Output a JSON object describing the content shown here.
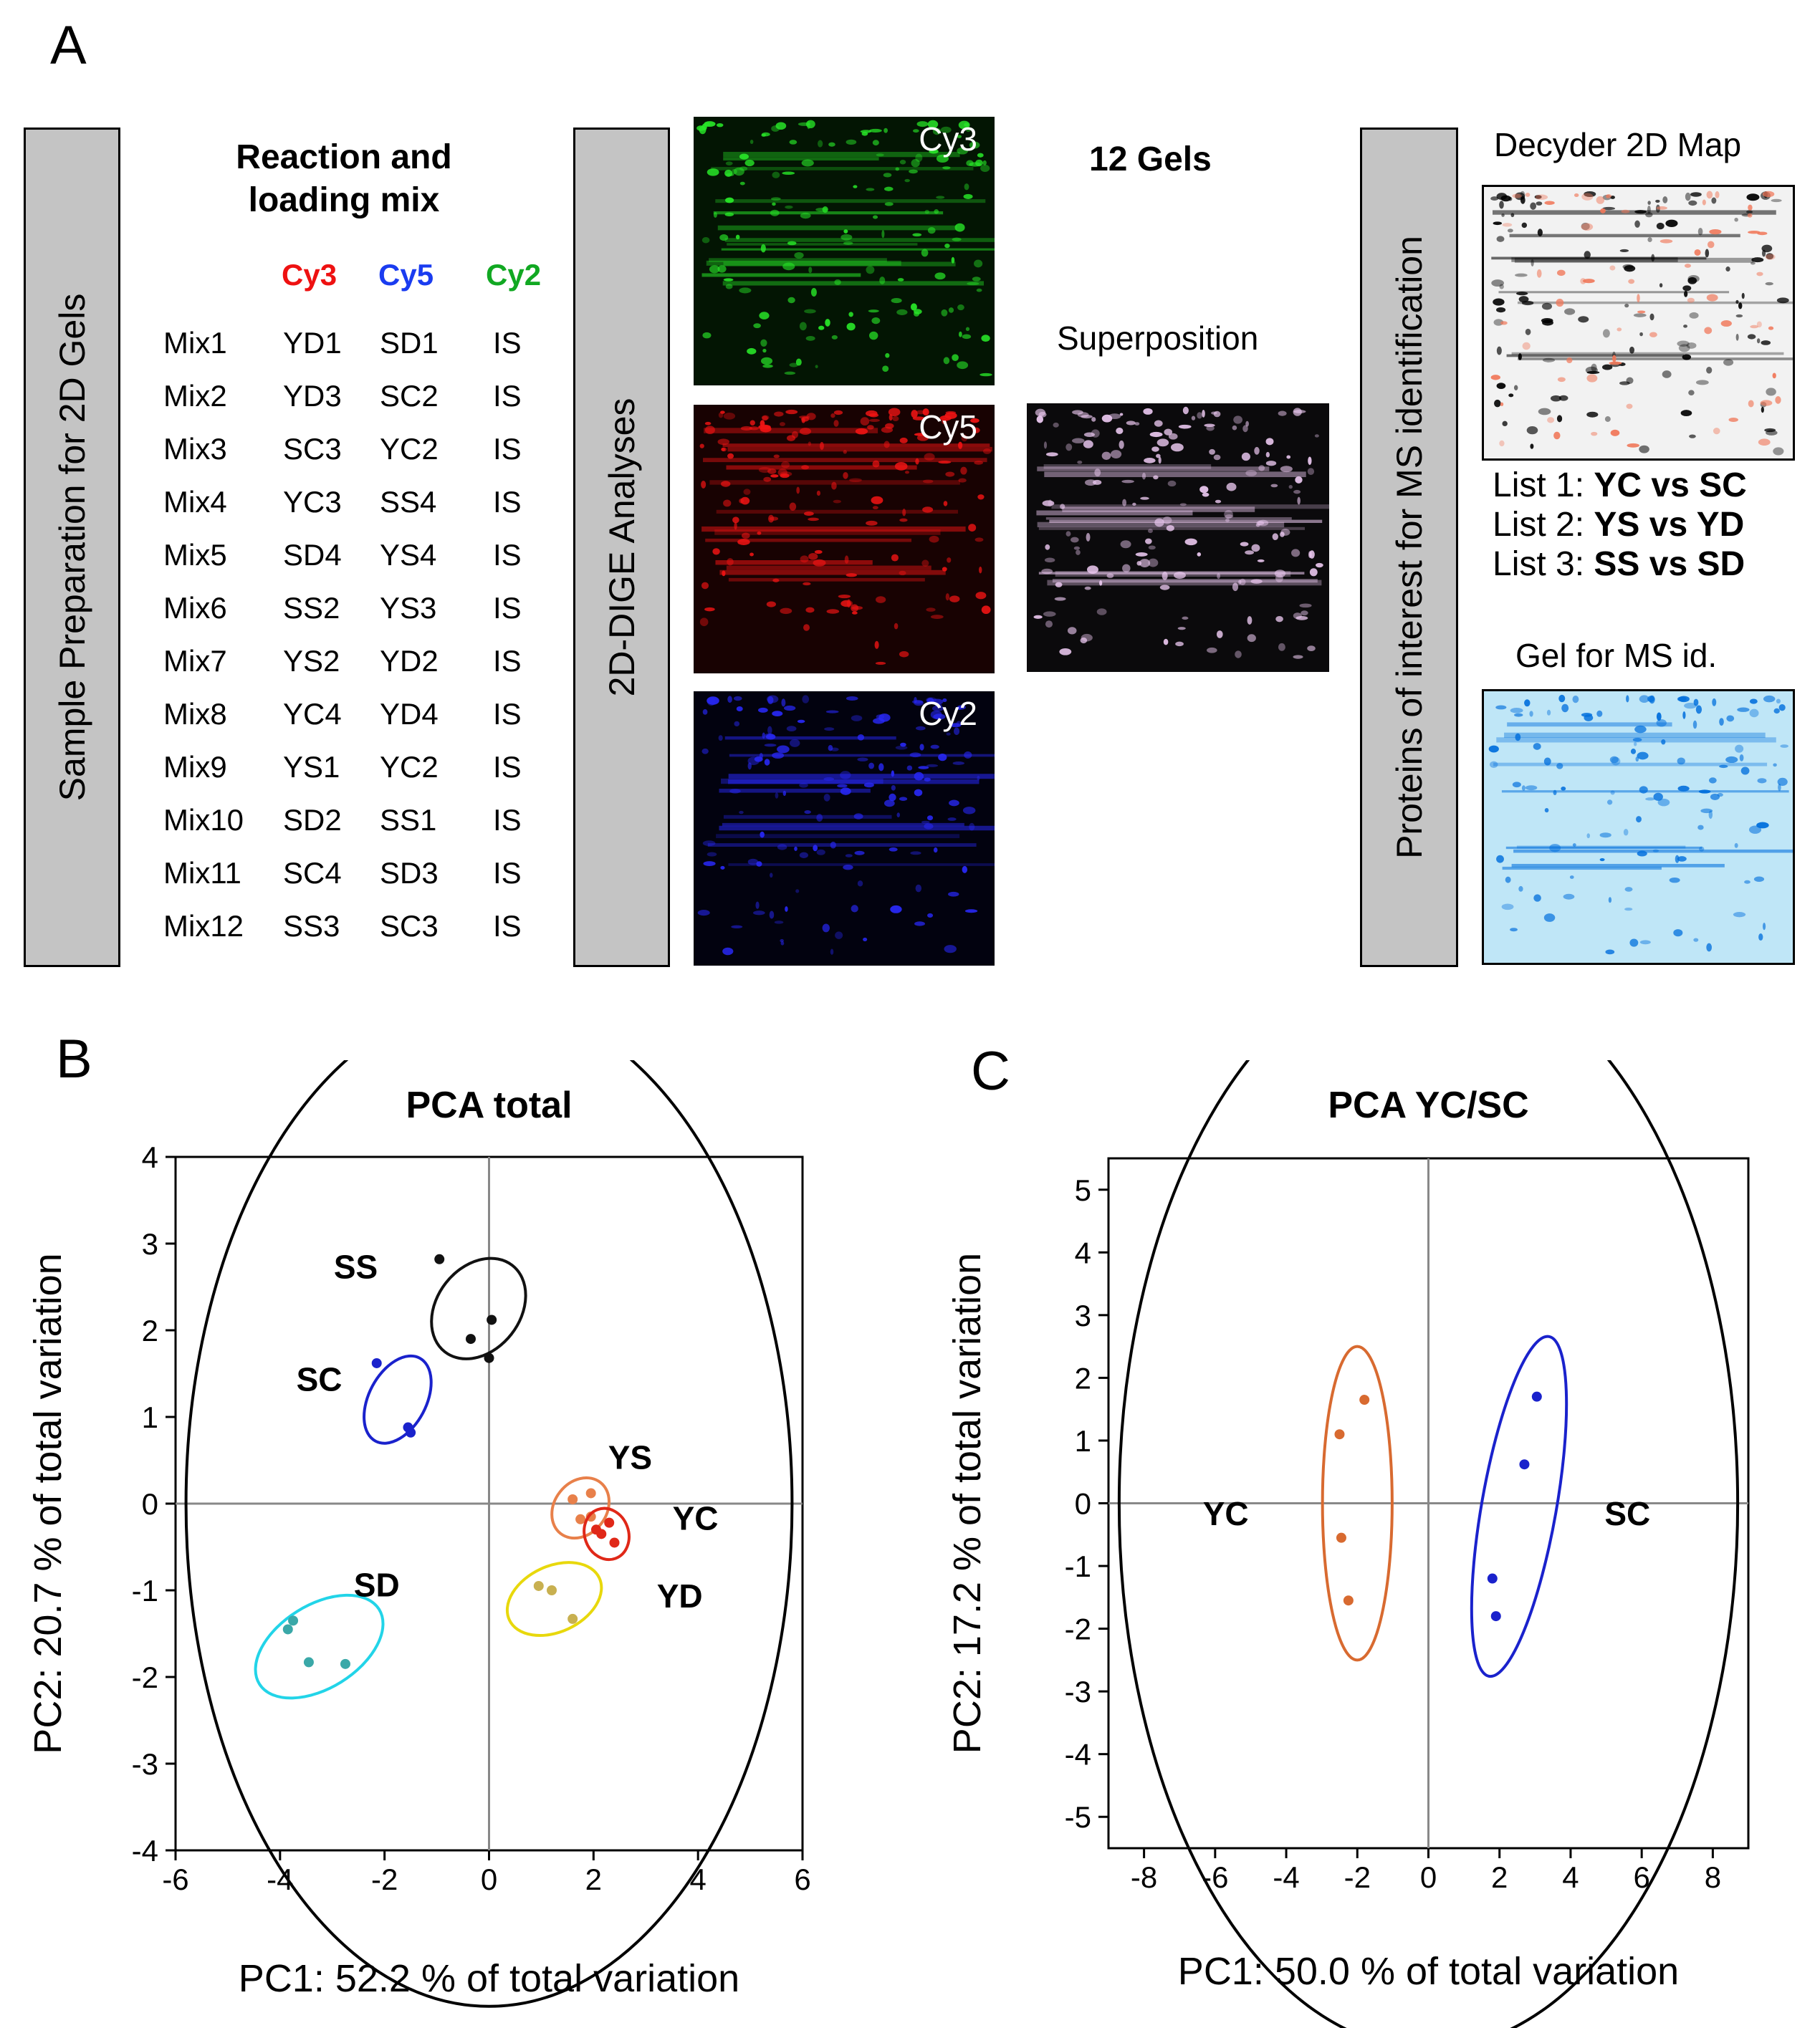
{
  "panel_a": {
    "letter": "A",
    "box1_label": "Sample Preparation for 2D Gels",
    "mix_heading_line1": "Reaction and",
    "mix_heading_line2": "loading mix",
    "dyes": [
      {
        "name": "Cy3",
        "color": "#ee1111"
      },
      {
        "name": "Cy5",
        "color": "#1a3cf0"
      },
      {
        "name": "Cy2",
        "color": "#11a822"
      }
    ],
    "mix_rows": [
      {
        "mix": "Mix1",
        "cy3": "YD1",
        "cy5": "SD1",
        "cy2": "IS"
      },
      {
        "mix": "Mix2",
        "cy3": "YD3",
        "cy5": "SC2",
        "cy2": "IS"
      },
      {
        "mix": "Mix3",
        "cy3": "SC3",
        "cy5": "YC2",
        "cy2": "IS"
      },
      {
        "mix": "Mix4",
        "cy3": "YC3",
        "cy5": "SS4",
        "cy2": "IS"
      },
      {
        "mix": "Mix5",
        "cy3": "SD4",
        "cy5": "YS4",
        "cy2": "IS"
      },
      {
        "mix": "Mix6",
        "cy3": "SS2",
        "cy5": "YS3",
        "cy2": "IS"
      },
      {
        "mix": "Mix7",
        "cy3": "YS2",
        "cy5": "YD2",
        "cy2": "IS"
      },
      {
        "mix": "Mix8",
        "cy3": "YC4",
        "cy5": "YD4",
        "cy2": "IS"
      },
      {
        "mix": "Mix9",
        "cy3": "YS1",
        "cy5": "YC2",
        "cy2": "IS"
      },
      {
        "mix": "Mix10",
        "cy3": "SD2",
        "cy5": "SS1",
        "cy2": "IS"
      },
      {
        "mix": "Mix11",
        "cy3": "SC4",
        "cy5": "SD3",
        "cy2": "IS"
      },
      {
        "mix": "Mix12",
        "cy3": "SS3",
        "cy5": "SC3",
        "cy2": "IS"
      }
    ],
    "box2_label": "2D-DIGE Analyses",
    "gel_cy3_label": "Cy3",
    "gel_cy5_label": "Cy5",
    "gel_cy2_label": "Cy2",
    "gels_count": "12 Gels",
    "superposition_label": "Superposition",
    "box3_label": "Proteins of interest for MS identification",
    "decyder_label": "Decyder 2D Map",
    "lists": [
      {
        "prefix": "List 1:",
        "comparison": "YC vs SC"
      },
      {
        "prefix": "List 2:",
        "comparison": "YS vs YD"
      },
      {
        "prefix": "List 3:",
        "comparison": "SS vs SD"
      }
    ],
    "ms_gel_label": "Gel for MS id."
  },
  "chart_data": [
    {
      "panel": "B",
      "type": "scatter",
      "title": "PCA total",
      "xlabel": "PC1: 52.2 % of total variation",
      "ylabel": "PC2: 20.7 % of total variation",
      "xlim": [
        -6,
        6
      ],
      "ylim": [
        -4,
        4
      ],
      "xticks": [
        -6,
        -4,
        -2,
        0,
        2,
        4,
        6
      ],
      "yticks": [
        -4,
        -3,
        -2,
        -1,
        0,
        1,
        2,
        3,
        4
      ],
      "circle_radius": 5.8,
      "series": [
        {
          "name": "SS",
          "color": "#111111",
          "points": [
            [
              -0.95,
              2.82
            ],
            [
              0.05,
              2.12
            ],
            [
              -0.35,
              1.9
            ],
            [
              0.0,
              1.68
            ]
          ],
          "ellipse": {
            "cx": -0.2,
            "cy": 2.25,
            "rx": 1.05,
            "ry": 0.48,
            "angle": -52
          }
        },
        {
          "name": "SC",
          "color": "#1a22cc",
          "points": [
            [
              -2.15,
              1.62
            ],
            [
              -1.55,
              0.88
            ],
            [
              -1.5,
              0.82
            ]
          ],
          "ellipse": {
            "cx": -1.75,
            "cy": 1.2,
            "rx": 0.9,
            "ry": 0.33,
            "angle": -62
          }
        },
        {
          "name": "YS",
          "color": "#e8804a",
          "points": [
            [
              1.6,
              0.05
            ],
            [
              1.95,
              0.12
            ],
            [
              1.95,
              -0.15
            ],
            [
              1.75,
              -0.18
            ]
          ],
          "ellipse": {
            "cx": 1.75,
            "cy": -0.05,
            "rx": 0.62,
            "ry": 0.3,
            "angle": -52
          }
        },
        {
          "name": "YC",
          "color": "#e02818",
          "points": [
            [
              2.05,
              -0.3
            ],
            [
              2.3,
              -0.22
            ],
            [
              2.4,
              -0.45
            ],
            [
              2.15,
              -0.35
            ]
          ],
          "ellipse": {
            "cx": 2.25,
            "cy": -0.35,
            "rx": 0.42,
            "ry": 0.3,
            "angle": -20
          }
        },
        {
          "name": "YD",
          "color": "#c8b050",
          "points": [
            [
              0.95,
              -0.95
            ],
            [
              1.2,
              -1.0
            ],
            [
              1.6,
              -1.33
            ]
          ],
          "ellipse": {
            "cx": 1.25,
            "cy": -1.1,
            "rx": 0.95,
            "ry": 0.38,
            "angle": -25
          }
        },
        {
          "name": "SD",
          "color": "#3aa8a8",
          "points": [
            [
              -3.75,
              -1.35
            ],
            [
              -3.85,
              -1.45
            ],
            [
              -3.45,
              -1.83
            ],
            [
              -2.75,
              -1.85
            ]
          ],
          "ellipse": {
            "cx": -3.25,
            "cy": -1.65,
            "rx": 1.35,
            "ry": 0.48,
            "angle": -32
          }
        }
      ],
      "ellipse_colors": {
        "SS": "#111111",
        "SC": "#1a22cc",
        "YS": "#e8804a",
        "YC": "#e02818",
        "YD": "#e8d80c",
        "SD": "#22d4e8"
      }
    },
    {
      "panel": "C",
      "type": "scatter",
      "title": "PCA YC/SC",
      "xlabel": "PC1: 50.0 % of total variation",
      "ylabel": "PC2: 17.2 % of total variation",
      "xlim": [
        -9,
        9
      ],
      "ylim": [
        -5.5,
        5.5
      ],
      "xticks": [
        -8,
        -6,
        -4,
        -2,
        0,
        2,
        4,
        6,
        8
      ],
      "yticks": [
        -5,
        -4,
        -3,
        -2,
        -1,
        0,
        1,
        2,
        3,
        4,
        5
      ],
      "circle_radius": 8.7,
      "series": [
        {
          "name": "YC",
          "color": "#d86a30",
          "points": [
            [
              -1.8,
              1.65
            ],
            [
              -2.5,
              1.1
            ],
            [
              -2.45,
              -0.55
            ],
            [
              -2.25,
              -1.55
            ]
          ],
          "ellipse": {
            "cx": -2.0,
            "cy": 0.0,
            "rx": 0.98,
            "ry": 2.5,
            "angle": 0
          }
        },
        {
          "name": "SC",
          "color": "#1a22cc",
          "points": [
            [
              3.05,
              1.7
            ],
            [
              2.7,
              0.62
            ],
            [
              1.8,
              -1.2
            ],
            [
              1.9,
              -1.8
            ]
          ],
          "ellipse": {
            "cx": 2.55,
            "cy": -0.05,
            "rx": 1.05,
            "ry": 2.75,
            "angle": 10
          }
        }
      ],
      "group_labels": [
        "YC",
        "SC"
      ]
    }
  ],
  "panel_b": {
    "letter": "B"
  },
  "panel_c": {
    "letter": "C"
  }
}
